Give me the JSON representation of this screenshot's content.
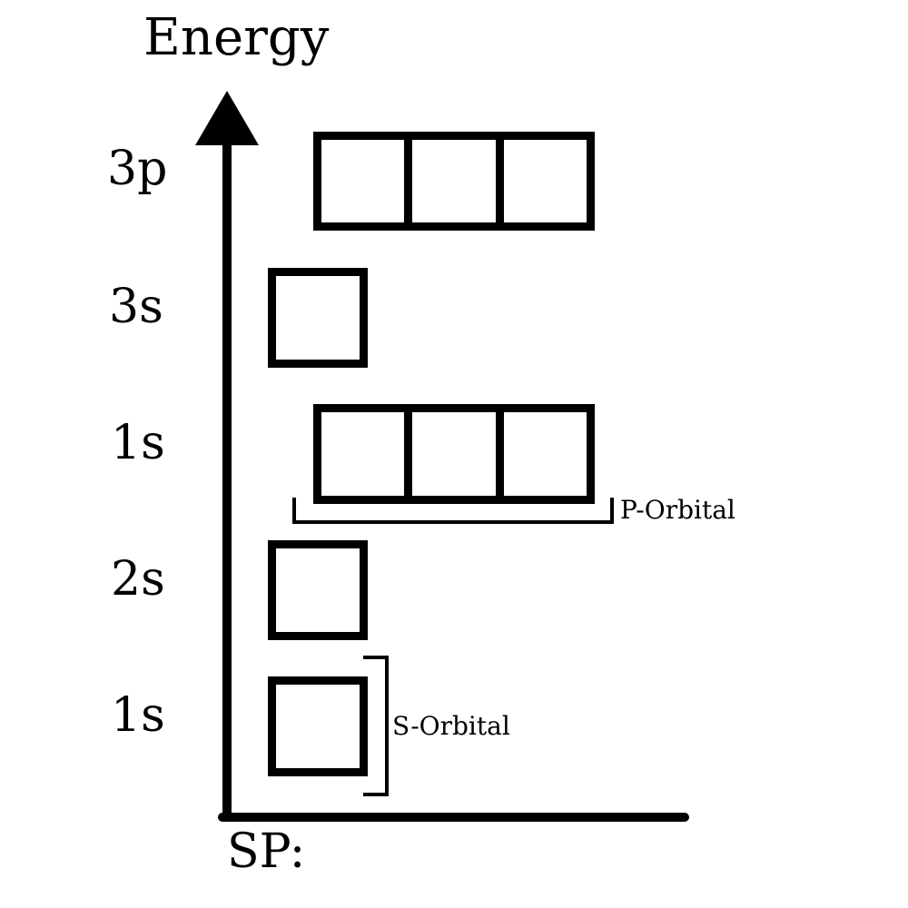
{
  "diagram": {
    "title": "Energy",
    "footer_label": "SP:",
    "levels": [
      {
        "label": "3p",
        "orbital_count": 3
      },
      {
        "label": "3s",
        "orbital_count": 1
      },
      {
        "label": "1s",
        "orbital_count": 3
      },
      {
        "label": "2s",
        "orbital_count": 1
      },
      {
        "label": "1s",
        "orbital_count": 1
      }
    ],
    "annotations": {
      "p_orbital": "P-Orbital",
      "s_orbital": "S-Orbital"
    },
    "colors": {
      "stroke": "#000000",
      "background": "#ffffff"
    }
  }
}
